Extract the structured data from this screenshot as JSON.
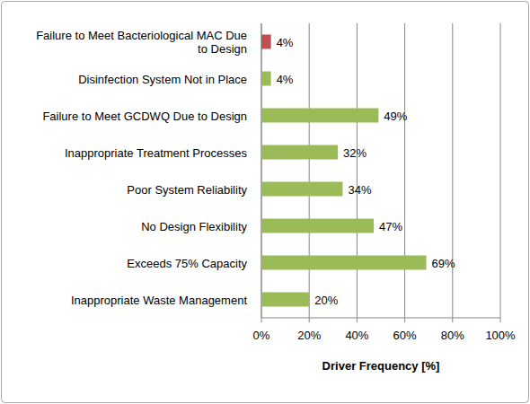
{
  "chart_data": {
    "type": "bar",
    "orientation": "horizontal",
    "categories": [
      "Failure to Meet Bacteriological MAC Due to Design",
      "Disinfection System Not in Place",
      "Failure to Meet GCDWQ Due to Design",
      "Inappropriate Treatment Processes",
      "Poor System Reliability",
      "No Design Flexibility",
      "Exceeds 75% Capacity",
      "Inappropriate Waste Management"
    ],
    "values": [
      4,
      4,
      49,
      32,
      34,
      47,
      69,
      20
    ],
    "value_labels": [
      "4%",
      "4%",
      "49%",
      "32%",
      "34%",
      "47%",
      "69%",
      "20%"
    ],
    "colors": [
      "#c0504d",
      "#9bbb59",
      "#9bbb59",
      "#9bbb59",
      "#9bbb59",
      "#9bbb59",
      "#9bbb59",
      "#9bbb59"
    ],
    "xlabel": "Driver Frequency [%]",
    "xlim": [
      0,
      100
    ],
    "xticks": [
      {
        "value": 0,
        "label": "0%"
      },
      {
        "value": 20,
        "label": "20%"
      },
      {
        "value": 40,
        "label": "40%"
      },
      {
        "value": 60,
        "label": "60%"
      },
      {
        "value": 80,
        "label": "80%"
      },
      {
        "value": 100,
        "label": "100%"
      }
    ],
    "grid": true,
    "data_labels": true
  }
}
